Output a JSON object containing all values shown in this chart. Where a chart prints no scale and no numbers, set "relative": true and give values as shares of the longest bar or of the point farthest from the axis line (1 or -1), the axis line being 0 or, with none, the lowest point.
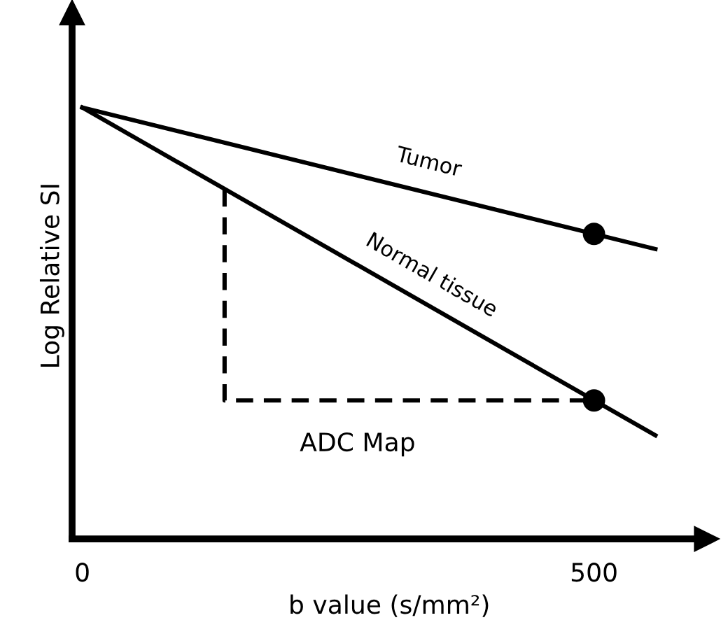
{
  "chart_data": {
    "type": "line",
    "relative": true,
    "xlabel": "b value (s/mm²)",
    "ylabel": "Log Relative SI",
    "xlim": [
      -10,
      610
    ],
    "xticks": [
      0,
      500
    ],
    "tick_labels": "x",
    "grid": false,
    "legend": false,
    "series": [
      {
        "name": "Tumor",
        "color": "#000000",
        "x": [
          0,
          560
        ],
        "values": [
          1.0,
          0.672
        ]
      },
      {
        "name": "Normal tissue",
        "color": "#000000",
        "x": [
          0,
          560
        ],
        "values": [
          1.0,
          0.24
        ]
      },
      {
        "type": "scatter",
        "color": "#000000",
        "marker": "circle",
        "x": [
          500,
          500
        ],
        "values": [
          0.707,
          0.321
        ]
      },
      {
        "color": "#000000",
        "line_style": "dashed",
        "x": [
          139,
          139,
          500
        ],
        "values": [
          0.81,
          0.321,
          0.321
        ]
      }
    ],
    "annotations": [
      "ADC Map"
    ]
  }
}
